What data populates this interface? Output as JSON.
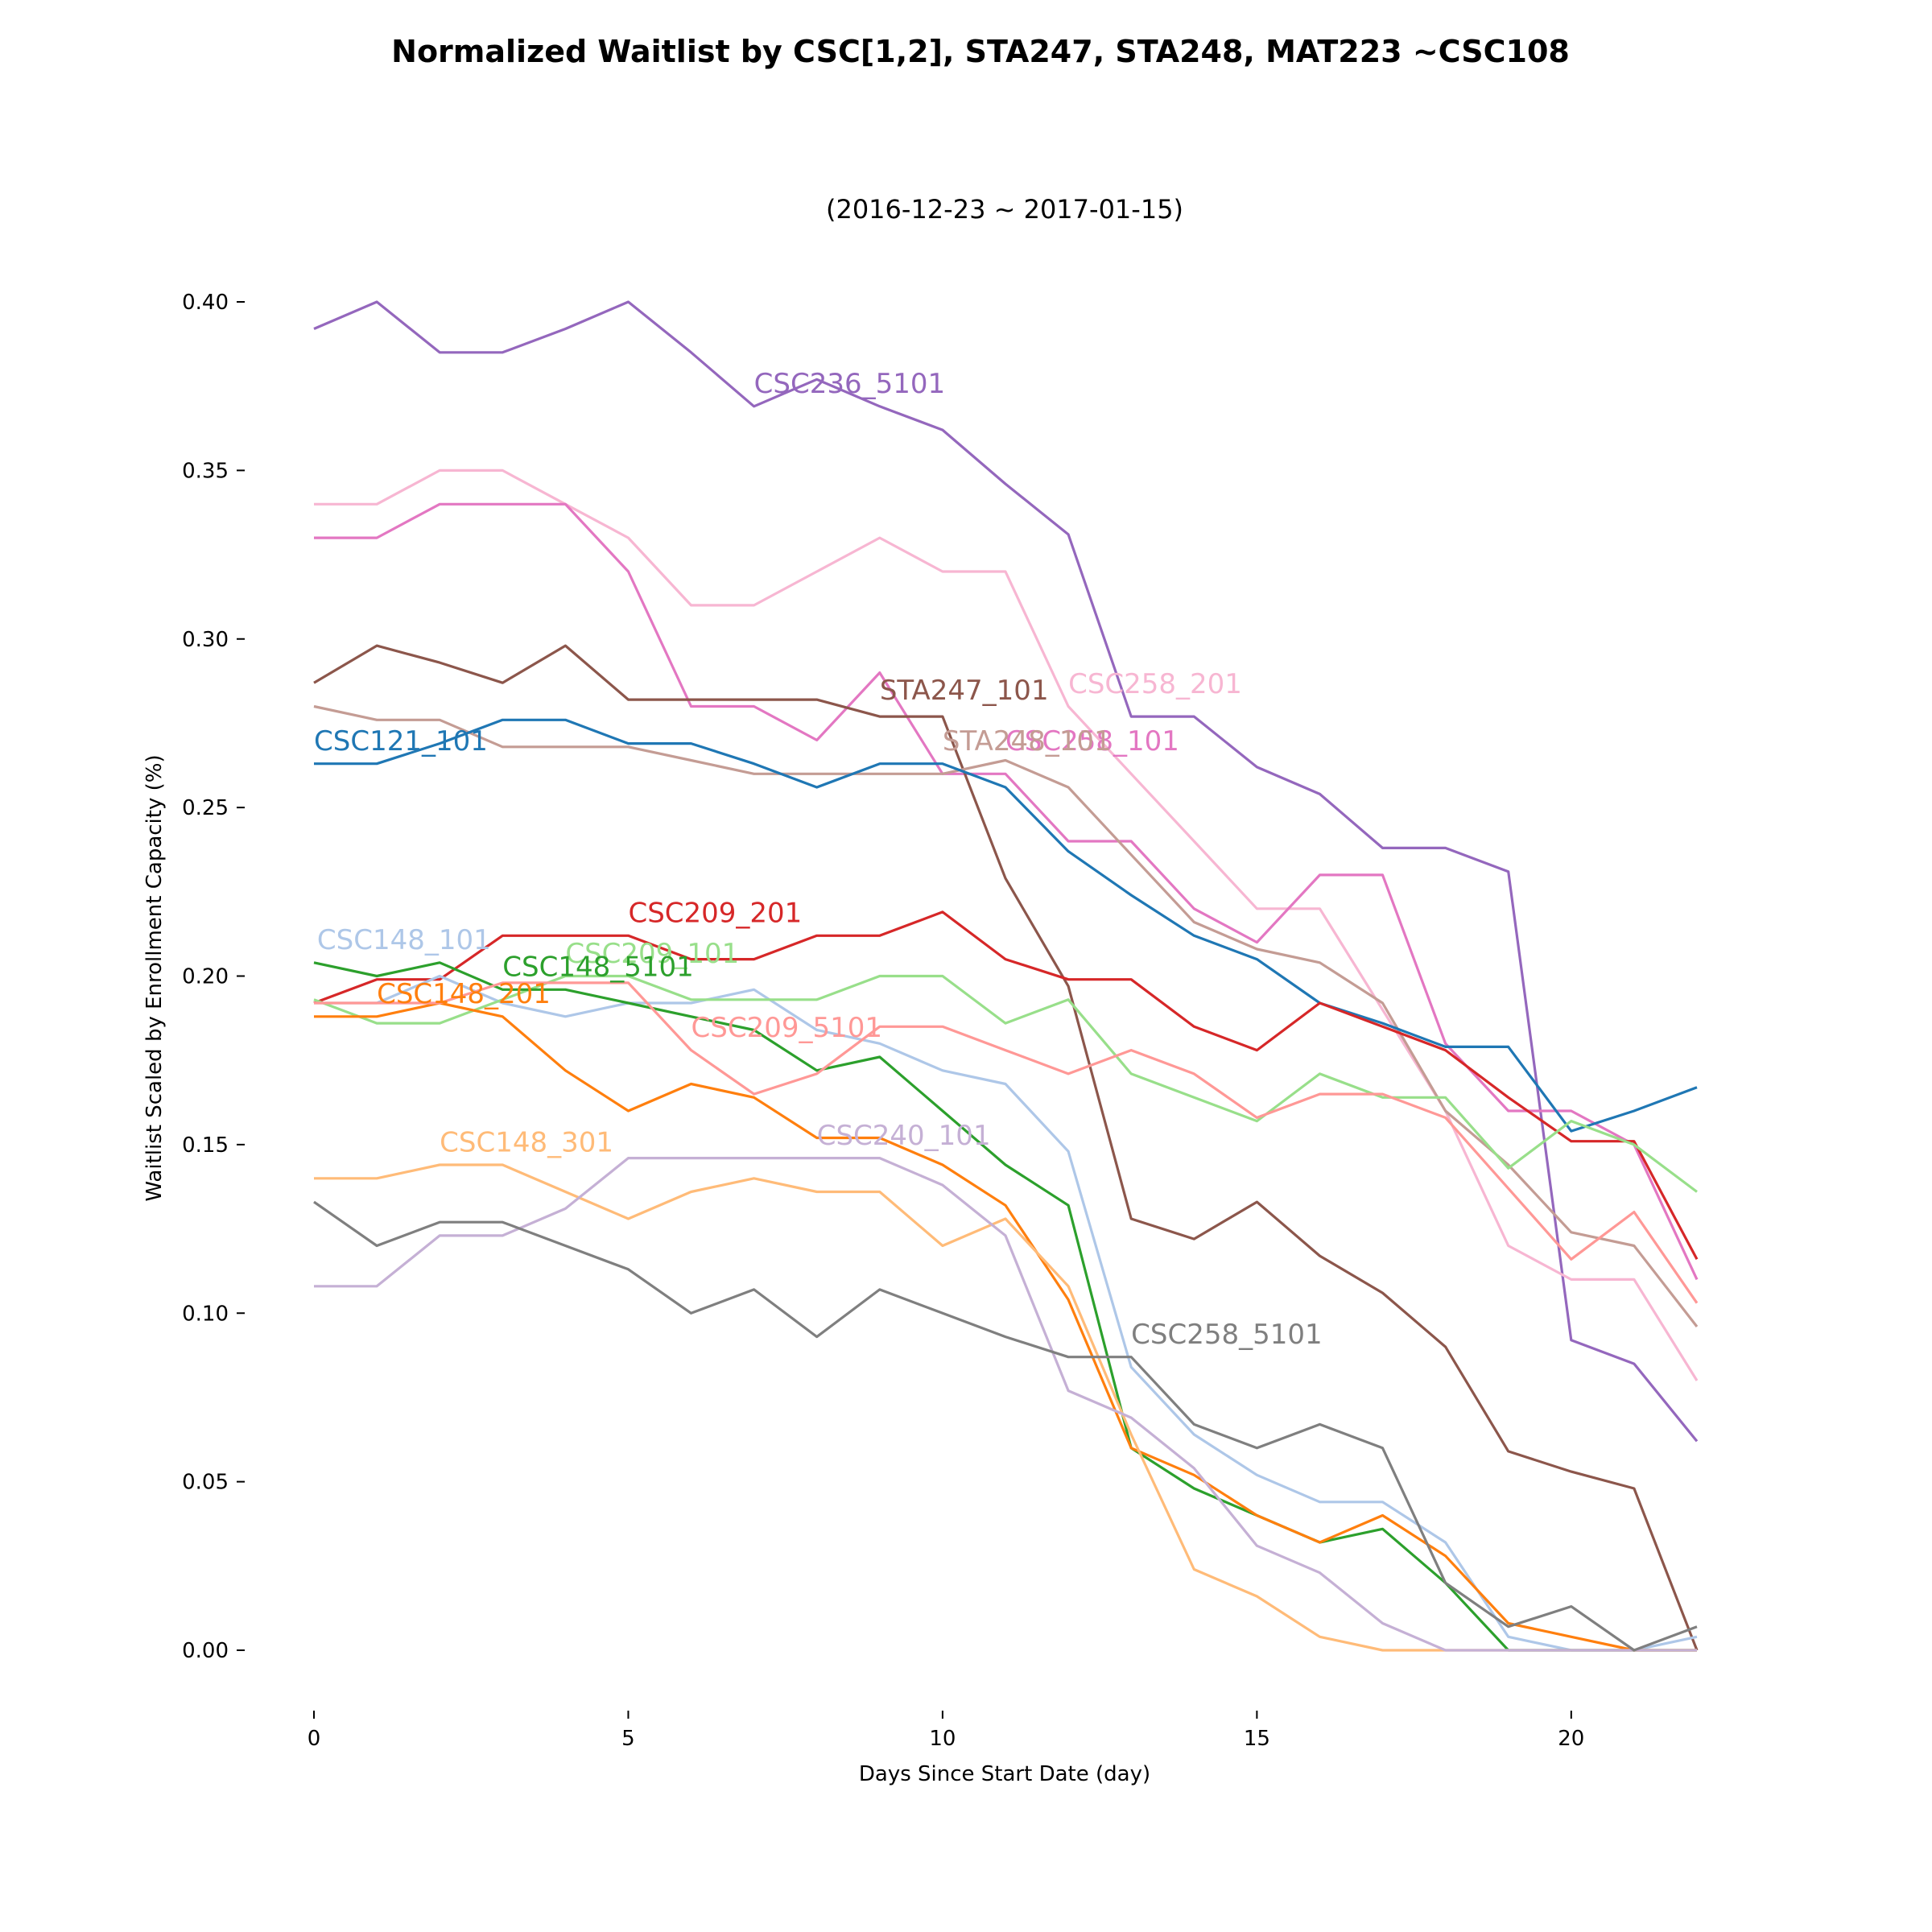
{
  "chart_data": {
    "type": "line",
    "title": "Normalized Waitlist by CSC[1,2], STA247, STA248, MAT223 ~CSC108",
    "subtitle": "(2016-12-23 ~ 2017-01-15)",
    "xlabel": "Days Since Start Date (day)",
    "ylabel": "Waitlist Scaled by Enrollment Capacity (%)",
    "xlim": [
      0,
      22
    ],
    "ylim": [
      -0.015,
      0.41
    ],
    "x_ticks": [
      0,
      5,
      10,
      15,
      20
    ],
    "y_ticks": [
      "0.00",
      "0.05",
      "0.10",
      "0.15",
      "0.20",
      "0.25",
      "0.30",
      "0.35",
      "0.40"
    ],
    "grid": false,
    "x": [
      0,
      1,
      2,
      3,
      4,
      5,
      6,
      7,
      8,
      9,
      10,
      11,
      12,
      13,
      14,
      15,
      16,
      17,
      18,
      19,
      20,
      21,
      22
    ],
    "series": [
      {
        "name": "CSC236_5101",
        "color": "#9467bd",
        "label_x": 7,
        "label_y": 0.373,
        "values": [
          0.392,
          0.4,
          0.385,
          0.385,
          0.392,
          0.4,
          0.385,
          0.369,
          0.377,
          0.369,
          0.362,
          0.346,
          0.331,
          0.277,
          0.277,
          0.262,
          0.254,
          0.238,
          0.238,
          0.231,
          0.092,
          0.085,
          0.062
        ]
      },
      {
        "name": "CSC258_201",
        "color": "#f7b6d2",
        "label_x": 12,
        "label_y": 0.284,
        "values": [
          0.34,
          0.34,
          0.35,
          0.35,
          0.34,
          0.33,
          0.31,
          0.31,
          0.32,
          0.33,
          0.32,
          0.32,
          0.28,
          0.26,
          0.24,
          0.22,
          0.22,
          0.19,
          0.16,
          0.12,
          0.11,
          0.11,
          0.08
        ]
      },
      {
        "name": "CSC258_101",
        "color": "#e377c2",
        "label_x": 11,
        "label_y": 0.267,
        "values": [
          0.33,
          0.33,
          0.34,
          0.34,
          0.34,
          0.32,
          0.28,
          0.28,
          0.27,
          0.29,
          0.26,
          0.26,
          0.24,
          0.24,
          0.22,
          0.21,
          0.23,
          0.23,
          0.18,
          0.16,
          0.16,
          0.15,
          0.11
        ]
      },
      {
        "name": "STA247_101",
        "color": "#8c564b",
        "label_x": 9,
        "label_y": 0.282,
        "values": [
          0.287,
          0.298,
          0.293,
          0.287,
          0.298,
          0.282,
          0.282,
          0.282,
          0.282,
          0.277,
          0.277,
          0.229,
          0.197,
          0.128,
          0.122,
          0.133,
          0.117,
          0.106,
          0.09,
          0.059,
          0.053,
          0.048,
          0.0
        ]
      },
      {
        "name": "STA248_101",
        "color": "#c49c94",
        "label_x": 10,
        "label_y": 0.267,
        "values": [
          0.28,
          0.276,
          0.276,
          0.268,
          0.268,
          0.268,
          0.264,
          0.26,
          0.26,
          0.26,
          0.26,
          0.264,
          0.256,
          0.236,
          0.216,
          0.208,
          0.204,
          0.192,
          0.16,
          0.144,
          0.124,
          0.12,
          0.096
        ]
      },
      {
        "name": "CSC121_101",
        "color": "#1f77b4",
        "label_x": 0,
        "label_y": 0.267,
        "values": [
          0.263,
          0.263,
          0.269,
          0.276,
          0.276,
          0.269,
          0.269,
          0.263,
          0.256,
          0.263,
          0.263,
          0.256,
          0.237,
          0.224,
          0.212,
          0.205,
          0.192,
          0.186,
          0.179,
          0.179,
          0.154,
          0.16,
          0.167
        ]
      },
      {
        "name": "CSC209_201",
        "color": "#d62728",
        "label_x": 5,
        "label_y": 0.216,
        "values": [
          0.192,
          0.199,
          0.199,
          0.212,
          0.212,
          0.212,
          0.205,
          0.205,
          0.212,
          0.212,
          0.219,
          0.205,
          0.199,
          0.199,
          0.185,
          0.178,
          0.192,
          0.185,
          0.178,
          0.164,
          0.151,
          0.151,
          0.116
        ]
      },
      {
        "name": "CSC148_101",
        "color": "#aec7e8",
        "label_x": 0.05,
        "label_y": 0.208,
        "values": [
          0.192,
          0.192,
          0.2,
          0.192,
          0.188,
          0.192,
          0.192,
          0.196,
          0.184,
          0.18,
          0.172,
          0.168,
          0.148,
          0.084,
          0.064,
          0.052,
          0.044,
          0.044,
          0.032,
          0.004,
          0.0,
          0.0,
          0.004
        ]
      },
      {
        "name": "CSC209_101",
        "color": "#98df8a",
        "label_x": 4,
        "label_y": 0.204,
        "values": [
          0.193,
          0.186,
          0.186,
          0.193,
          0.2,
          0.2,
          0.193,
          0.193,
          0.193,
          0.2,
          0.2,
          0.186,
          0.193,
          0.171,
          0.164,
          0.157,
          0.171,
          0.164,
          0.164,
          0.143,
          0.157,
          0.15,
          0.136
        ]
      },
      {
        "name": "CSC148_5101",
        "color": "#2ca02c",
        "label_x": 3,
        "label_y": 0.2,
        "values": [
          0.204,
          0.2,
          0.204,
          0.196,
          0.196,
          0.192,
          0.188,
          0.184,
          0.172,
          0.176,
          0.16,
          0.144,
          0.132,
          0.06,
          0.048,
          0.04,
          0.032,
          0.036,
          0.02,
          0.0,
          0.0,
          0.0,
          0.0
        ]
      },
      {
        "name": "CSC148_201",
        "color": "#ff7f0e",
        "label_x": 1,
        "label_y": 0.192,
        "values": [
          0.188,
          0.188,
          0.192,
          0.188,
          0.172,
          0.16,
          0.168,
          0.164,
          0.152,
          0.152,
          0.144,
          0.132,
          0.104,
          0.06,
          0.052,
          0.04,
          0.032,
          0.04,
          0.028,
          0.008,
          0.004,
          0.0,
          0.0
        ]
      },
      {
        "name": "CSC209_5101",
        "color": "#ff9896",
        "label_x": 6,
        "label_y": 0.182,
        "values": [
          0.192,
          0.192,
          0.192,
          0.198,
          0.198,
          0.198,
          0.178,
          0.165,
          0.171,
          0.185,
          0.185,
          0.178,
          0.171,
          0.178,
          0.171,
          0.158,
          0.165,
          0.165,
          0.158,
          0.137,
          0.116,
          0.13,
          0.103
        ]
      },
      {
        "name": "CSC148_301",
        "color": "#ffbb78",
        "label_x": 2,
        "label_y": 0.148,
        "values": [
          0.14,
          0.14,
          0.144,
          0.144,
          0.136,
          0.128,
          0.136,
          0.14,
          0.136,
          0.136,
          0.12,
          0.128,
          0.108,
          0.064,
          0.024,
          0.016,
          0.004,
          0.0,
          0.0,
          0.0,
          0.0,
          0.0,
          0.0
        ]
      },
      {
        "name": "CSC240_101",
        "color": "#c5b0d5",
        "label_x": 8,
        "label_y": 0.15,
        "values": [
          0.108,
          0.108,
          0.123,
          0.123,
          0.131,
          0.146,
          0.146,
          0.146,
          0.146,
          0.146,
          0.138,
          0.123,
          0.077,
          0.069,
          0.054,
          0.031,
          0.023,
          0.008,
          0.0,
          0.0,
          0.0,
          0.0,
          0.0
        ]
      },
      {
        "name": "CSC258_5101",
        "color": "#7f7f7f",
        "label_x": 13,
        "label_y": 0.091,
        "values": [
          0.133,
          0.12,
          0.127,
          0.127,
          0.12,
          0.113,
          0.1,
          0.107,
          0.093,
          0.107,
          0.1,
          0.093,
          0.087,
          0.087,
          0.067,
          0.06,
          0.067,
          0.06,
          0.02,
          0.007,
          0.013,
          0.0,
          0.007
        ]
      }
    ]
  }
}
